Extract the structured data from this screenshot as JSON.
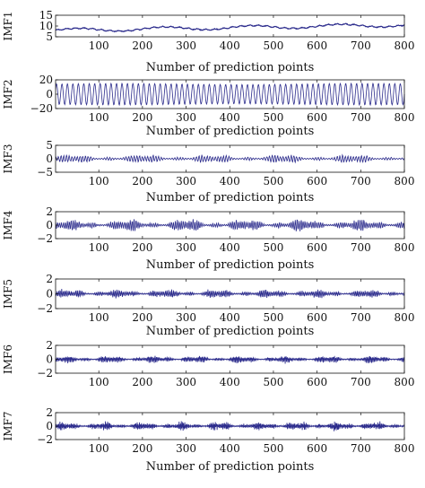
{
  "chart_data": [
    {
      "type": "line",
      "ylabel": "IMF1",
      "xlabel": "Number of prediction points",
      "xlim": [
        1,
        800
      ],
      "ylim": [
        5,
        15
      ],
      "yticks": [
        5,
        10,
        15
      ],
      "xticks": [
        100,
        200,
        300,
        400,
        500,
        600,
        700,
        800
      ],
      "series": [
        {
          "color": "#2b2b8c",
          "x_range": [
            1,
            800
          ],
          "trend_start": 8,
          "trend_end": 10.5,
          "cycles": 4,
          "amplitude": 0.8
        }
      ]
    },
    {
      "type": "line",
      "ylabel": "IMF2",
      "xlabel": "Number of prediction points",
      "xlim": [
        1,
        800
      ],
      "ylim": [
        -20,
        20
      ],
      "yticks": [
        -20,
        0,
        20
      ],
      "xticks": [
        100,
        200,
        300,
        400,
        500,
        600,
        700,
        800
      ],
      "series": [
        {
          "color": "#2b2b8c",
          "x_range": [
            1,
            800
          ],
          "period": 12.5,
          "amplitude": 15
        }
      ]
    },
    {
      "type": "line",
      "ylabel": "IMF3",
      "xlabel": "Number of prediction points",
      "xlim": [
        1,
        800
      ],
      "ylim": [
        -5,
        5
      ],
      "yticks": [
        -5,
        0,
        5
      ],
      "xticks": [
        100,
        200,
        300,
        400,
        500,
        600,
        700,
        800
      ],
      "series": [
        {
          "color": "#2b2b8c",
          "x_range": [
            1,
            800
          ],
          "period": 6.2,
          "amplitude": 1.2
        }
      ]
    },
    {
      "type": "line",
      "ylabel": "IMF4",
      "xlabel": "Number of prediction points",
      "xlim": [
        1,
        800
      ],
      "ylim": [
        -2,
        2
      ],
      "yticks": [
        -2,
        0,
        2
      ],
      "xticks": [
        100,
        200,
        300,
        400,
        500,
        600,
        700,
        800
      ],
      "series": [
        {
          "color": "#2b2b8c",
          "x_range": [
            1,
            800
          ],
          "period": 4.5,
          "amplitude": 0.7
        }
      ]
    },
    {
      "type": "line",
      "ylabel": "IMF5",
      "xlabel": "Number of prediction points",
      "xlim": [
        1,
        800
      ],
      "ylim": [
        -2,
        2
      ],
      "yticks": [
        -2,
        0,
        2
      ],
      "xticks": [
        100,
        200,
        300,
        400,
        500,
        600,
        700,
        800
      ],
      "series": [
        {
          "color": "#2b2b8c",
          "x_range": [
            1,
            800
          ],
          "period": 3.6,
          "amplitude": 0.5
        }
      ]
    },
    {
      "type": "line",
      "ylabel": "IMF6",
      "xlabel": "",
      "xlim": [
        1,
        800
      ],
      "ylim": [
        -2,
        2
      ],
      "yticks": [
        -2,
        0,
        2
      ],
      "xticks": [
        100,
        200,
        300,
        400,
        500,
        600,
        700,
        800
      ],
      "series": [
        {
          "color": "#2b2b8c",
          "x_range": [
            1,
            800
          ],
          "period": 3.0,
          "amplitude": 0.45
        }
      ]
    },
    {
      "type": "line",
      "ylabel": "IMF7",
      "xlabel": "Number of prediction points",
      "xlim": [
        1,
        800
      ],
      "ylim": [
        -2,
        2
      ],
      "yticks": [
        -2,
        0,
        2
      ],
      "xticks": [
        100,
        200,
        300,
        400,
        500,
        600,
        700,
        800
      ],
      "series": [
        {
          "color": "#2b2b8c",
          "x_range": [
            1,
            800
          ],
          "period": 2.6,
          "amplitude": 0.55
        }
      ]
    }
  ]
}
